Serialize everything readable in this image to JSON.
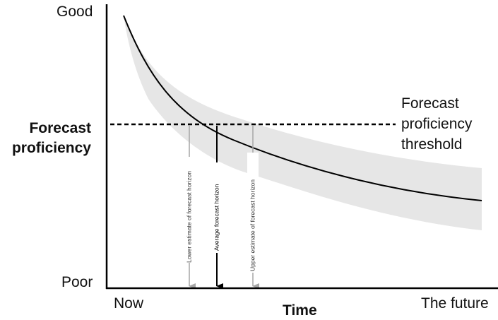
{
  "y_axis": {
    "title_line1": "Forecast",
    "title_line2": "proficiency",
    "top_label": "Good",
    "bottom_label": "Poor"
  },
  "x_axis": {
    "title": "Time",
    "left_label": "Now",
    "right_label": "The future"
  },
  "threshold": {
    "line1": "Forecast",
    "line2": "proficiency",
    "line3": "threshold"
  },
  "horizons": {
    "lower": "Lower estimate of forecast horizon",
    "average": "Average forecast horizon",
    "upper": "Upper estimate of forecast horizon"
  },
  "colors": {
    "curve": "#000000",
    "uncertainty_band": "#e6e6e6",
    "estimate_arrows": "#a6a6a6",
    "average_arrow": "#000000"
  }
}
